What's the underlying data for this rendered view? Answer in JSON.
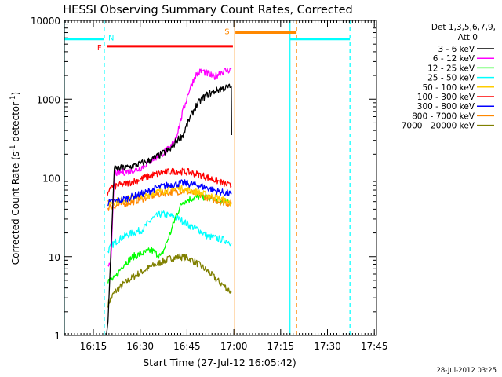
{
  "chart_data": {
    "type": "line",
    "title": "HESSI Observing Summary Count Rates, Corrected",
    "xlabel": "Start Time (27-Jul-12 16:05:42)",
    "ylabel": "Corrected Count Rate (s",
    "ylabel_sup1": "-1",
    "ylabel_mid": " detector",
    "ylabel_sup2": "-1",
    "ylabel_end": ")",
    "x_unit": "minutes since 16:05:42",
    "xlim": [
      0,
      100
    ],
    "ylim": [
      1,
      10000
    ],
    "y_scale": "log",
    "x_ticks": [
      {
        "label": "16:15",
        "x": 9.3
      },
      {
        "label": "16:30",
        "x": 24.3
      },
      {
        "label": "16:45",
        "x": 39.3
      },
      {
        "label": "17:00",
        "x": 54.3
      },
      {
        "label": "17:15",
        "x": 69.3
      },
      {
        "label": "17:30",
        "x": 84.3
      },
      {
        "label": "17:45",
        "x": 99.3
      }
    ],
    "y_ticks": [
      {
        "label": "1",
        "y": 1
      },
      {
        "label": "10",
        "y": 10
      },
      {
        "label": "100",
        "y": 100
      },
      {
        "label": "1000",
        "y": 1000
      },
      {
        "label": "10000",
        "y": 10000
      }
    ],
    "legend_title": [
      "Det 1,3,5,6,7,9,",
      "Att 0"
    ],
    "legend_position": "right",
    "series": [
      {
        "name": "3 - 6 keV",
        "color": "#000000",
        "x": [
          13.5,
          14.0,
          16.0,
          20.0,
          24.0,
          28.0,
          31.0,
          34.0,
          36.0,
          38.0,
          40.0,
          42.0,
          44.0,
          46.0,
          48.0,
          50.0,
          52.0,
          53.5,
          53.6
        ],
        "y": [
          1.0,
          1.5,
          130,
          135,
          150,
          170,
          200,
          230,
          300,
          350,
          550,
          800,
          1000,
          1150,
          1250,
          1350,
          1400,
          1450,
          350
        ]
      },
      {
        "name": "6 - 12 keV",
        "color": "#ff00ff",
        "x": [
          14.0,
          15.0,
          16.0,
          20.0,
          24.0,
          28.0,
          31.0,
          34.0,
          36.0,
          38.0,
          40.0,
          42.0,
          44.0,
          46.0,
          48.0,
          50.0,
          52.0,
          53.5
        ],
        "y": [
          8,
          9,
          115,
          120,
          130,
          170,
          200,
          240,
          350,
          700,
          1300,
          2000,
          2300,
          2100,
          1900,
          2200,
          2300,
          2400
        ]
      },
      {
        "name": "12 - 25 keV",
        "color": "#00ff00",
        "x": [
          14.0,
          16.0,
          19.0,
          22.0,
          25.0,
          28.0,
          31.0,
          34.0,
          36.0,
          38.0,
          41.0,
          44.0,
          47.0,
          50.0,
          53.5
        ],
        "y": [
          5,
          5.2,
          8,
          10,
          11,
          12,
          10,
          20,
          35,
          50,
          55,
          58,
          55,
          50,
          48
        ]
      },
      {
        "name": "25 - 50 keV",
        "color": "#00ffff",
        "x": [
          14.0,
          16.0,
          19.0,
          22.0,
          25.0,
          28.0,
          31.0,
          34.0,
          37.0,
          40.0,
          43.0,
          46.0,
          49.0,
          52.0,
          53.5
        ],
        "y": [
          12,
          15,
          18,
          20,
          22,
          30,
          35,
          33,
          30,
          25,
          22,
          18,
          17,
          16,
          15
        ]
      },
      {
        "name": "50 - 100 keV",
        "color": "#ffcc00",
        "x": [
          14.0,
          18.0,
          22.0,
          26.0,
          30.0,
          34.0,
          37.0,
          40.0,
          43.0,
          46.0,
          49.0,
          52.0,
          53.5
        ],
        "y": [
          48,
          52,
          56,
          60,
          66,
          72,
          74,
          70,
          65,
          60,
          56,
          50,
          48
        ]
      },
      {
        "name": "100 - 300 keV",
        "color": "#ff0000",
        "x": [
          13.8,
          14.5,
          16.0,
          20.0,
          24.0,
          28.0,
          32.0,
          36.0,
          40.0,
          44.0,
          48.0,
          52.0,
          53.5
        ],
        "y": [
          55,
          76,
          78,
          85,
          95,
          108,
          118,
          122,
          118,
          108,
          95,
          82,
          78
        ]
      },
      {
        "name": "300 - 800 keV",
        "color": "#0000ff",
        "x": [
          14.0,
          18.0,
          22.0,
          26.0,
          30.0,
          34.0,
          38.0,
          42.0,
          46.0,
          50.0,
          53.5
        ],
        "y": [
          48,
          52,
          58,
          65,
          75,
          82,
          86,
          82,
          74,
          66,
          62
        ]
      },
      {
        "name": "800 - 7000 keV",
        "color": "#ff8800",
        "x": [
          14.0,
          18.0,
          22.0,
          26.0,
          30.0,
          34.0,
          38.0,
          42.0,
          46.0,
          50.0,
          53.5
        ],
        "y": [
          42,
          46,
          50,
          56,
          62,
          66,
          68,
          63,
          56,
          50,
          47
        ]
      },
      {
        "name": "7000 - 20000 keV",
        "color": "#808000",
        "x": [
          14.0,
          16.0,
          19.0,
          22.0,
          25.0,
          28.0,
          31.0,
          34.0,
          37.0,
          40.0,
          43.0,
          46.0,
          49.0,
          52.0,
          53.5
        ],
        "y": [
          2.5,
          3.5,
          4.5,
          5.5,
          6.5,
          7.5,
          8.5,
          9.5,
          10,
          9.5,
          8,
          6.5,
          5,
          4,
          3.5
        ]
      }
    ],
    "annotations": [
      {
        "text": "N",
        "color": "#00ffff"
      },
      {
        "text": "F",
        "color": "#ff0000"
      },
      {
        "text": "S",
        "color": "#ff8800"
      }
    ],
    "bars": [
      {
        "label": "F",
        "color": "#ff0000",
        "x": [
          13.8,
          54.0
        ],
        "y": 4700
      },
      {
        "label": "S",
        "color": "#ff8800",
        "x": [
          54.8,
          74.4
        ],
        "y": 7000
      },
      {
        "label": "cyan",
        "color": "#00ffff",
        "x": [
          0.0,
          12.8
        ],
        "y": 5800
      },
      {
        "label": "cyan",
        "color": "#00ffff",
        "x": [
          72.3,
          91.5
        ],
        "y": 5800
      }
    ],
    "vlines": [
      {
        "x": 0.0,
        "color": "#00ffff",
        "style": "solid"
      },
      {
        "x": 12.8,
        "color": "#00ffff",
        "style": "dashed"
      },
      {
        "x": 54.6,
        "color": "#ff8800",
        "style": "solid"
      },
      {
        "x": 72.3,
        "color": "#00ffff",
        "style": "solid"
      },
      {
        "x": 74.4,
        "color": "#ff8800",
        "style": "dashed"
      },
      {
        "x": 91.5,
        "color": "#00ffff",
        "style": "dashed"
      }
    ]
  },
  "footer_timestamp": "28-Jul-2012 03:25"
}
